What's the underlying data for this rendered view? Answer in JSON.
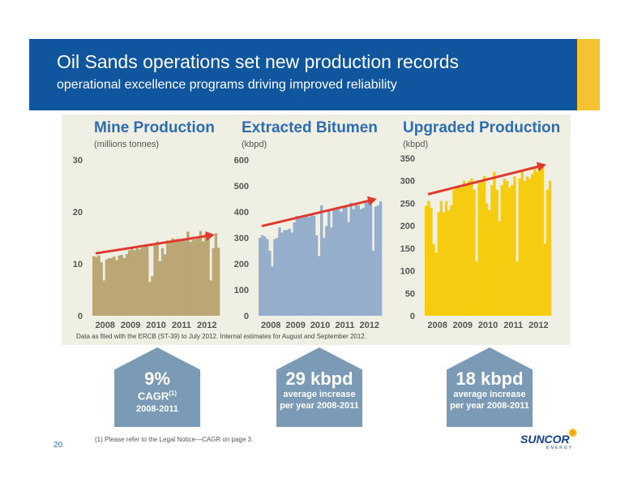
{
  "header": {
    "title": "Oil Sands operations set new production records",
    "subtitle": "operational excellence programs driving improved reliability"
  },
  "colors": {
    "banner": "#0f569e",
    "accent": "#f4c430",
    "panel": "#efefe4",
    "trend_arrow": "#e03a2f",
    "title_blue": "#2e6db4",
    "callout": "#7a9ab5"
  },
  "note": "Data as filed with the ERCB (ST-39) to July 2012. Internal estimates for August and September 2012.",
  "chart_data": [
    {
      "type": "bar",
      "title": "Mine Production",
      "ylabel": "(millions tonnes)",
      "ylim": [
        0,
        30
      ],
      "yticks": [
        0,
        10,
        20,
        30
      ],
      "xticks": [
        "2008",
        "2009",
        "2010",
        "2011",
        "2012"
      ],
      "color": "#bba675",
      "trend": [
        12,
        15.6
      ],
      "series": [
        {
          "values": [
            11.5,
            11.3,
            11.6,
            10.3,
            6.8,
            10.8,
            11.1,
            11.1,
            11.4,
            10.7,
            11.6,
            11.7,
            11.1,
            11.9,
            12.6,
            13.0,
            12.6,
            13.1,
            12.8,
            13.1,
            13.6,
            13.3,
            6.5,
            7.6,
            13.6,
            14.3,
            10.5,
            13.0,
            11.8,
            14.5,
            14.1,
            14.9,
            14.7,
            14.8,
            14.6,
            14.7,
            14.7,
            16.2,
            14.2,
            14.6,
            14.7,
            15.2,
            16.3,
            14.3,
            15.8,
            15.5,
            6.8,
            13.0,
            15.9,
            13.1
          ]
        }
      ]
    },
    {
      "type": "bar",
      "title": "Extracted Bitumen",
      "ylabel": "(kbpd)",
      "ylim": [
        0,
        600
      ],
      "yticks": [
        0,
        100,
        200,
        300,
        400,
        500,
        600
      ],
      "xticks": [
        "2008",
        "2009",
        "2010",
        "2011",
        "2012"
      ],
      "color": "#94aecb",
      "trend": [
        345,
        450
      ],
      "series": [
        {
          "values": [
            300,
            310,
            305,
            295,
            250,
            190,
            295,
            300,
            340,
            320,
            330,
            330,
            335,
            320,
            360,
            385,
            380,
            385,
            385,
            390,
            380,
            395,
            385,
            310,
            230,
            425,
            300,
            345,
            410,
            340,
            415,
            410,
            410,
            400,
            420,
            420,
            360,
            435,
            410,
            430,
            425,
            410,
            415,
            435,
            445,
            440,
            250,
            420,
            425,
            440
          ]
        }
      ]
    },
    {
      "type": "bar",
      "title": "Upgraded Production",
      "ylabel": "(kbpd)",
      "ylim": [
        0,
        350
      ],
      "yticks": [
        0,
        50,
        100,
        150,
        200,
        250,
        300,
        350
      ],
      "xticks": [
        "2008",
        "2009",
        "2010",
        "2011",
        "2012"
      ],
      "color": "#f6cc10",
      "trend": [
        270,
        336
      ],
      "series": [
        {
          "values": [
            245,
            255,
            240,
            160,
            140,
            230,
            255,
            230,
            255,
            235,
            245,
            280,
            285,
            290,
            285,
            300,
            290,
            300,
            305,
            280,
            120,
            295,
            300,
            310,
            250,
            235,
            290,
            320,
            280,
            210,
            290,
            305,
            300,
            285,
            290,
            310,
            120,
            305,
            320,
            300,
            310,
            305,
            315,
            330,
            320,
            335,
            330,
            160,
            280,
            300
          ]
        }
      ]
    }
  ],
  "callouts": [
    {
      "big": "9%",
      "mid": "CAGR",
      "sup": "(1)",
      "small": "2008-2011"
    },
    {
      "big": "29 kbpd",
      "line1": "average increase",
      "line2": "per year 2008-2011"
    },
    {
      "big": "18 kbpd",
      "line1": "average increase",
      "line2": "per year 2008-2011"
    }
  ],
  "footer": {
    "page_number": "20",
    "footnote": "(1)  Please refer to the Legal Notice—CAGR on page 3.",
    "logo": "SUNCOR",
    "logo_sub": "ENERGY"
  }
}
